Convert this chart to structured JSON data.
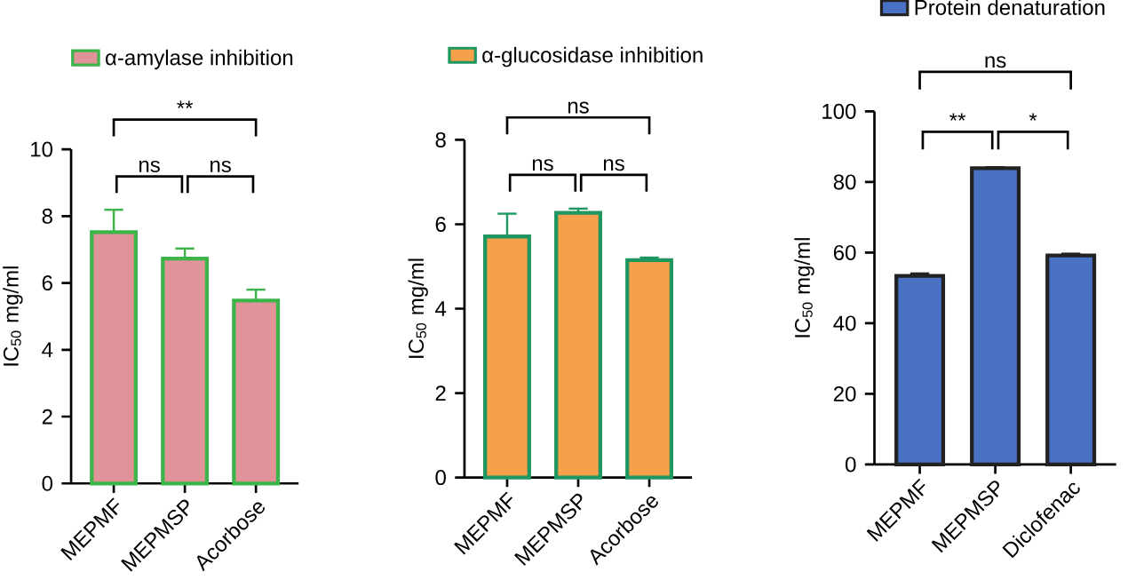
{
  "chart_data": [
    {
      "type": "bar",
      "categories": [
        "MEPMF",
        "MEPMSP",
        "Acorbose"
      ],
      "ylabel": "IC$_{50}$ mg/ml",
      "ylim": [
        0,
        10
      ],
      "yticks": [
        0,
        2,
        4,
        6,
        8,
        10
      ],
      "legend": "top",
      "annotations": [
        "ns",
        "ns",
        "**"
      ],
      "series": [
        {
          "name": "α-amylase inhibition",
          "color": "#e0949a",
          "values": [
            7.52,
            6.73,
            5.47
          ],
          "errors": [
            0.67,
            0.3,
            0.33
          ]
        }
      ]
    },
    {
      "type": "bar",
      "categories": [
        "MEPMF",
        "MEPMSP",
        "Acorbose"
      ],
      "ylabel": "IC$_{50}$ mg/ml",
      "ylim": [
        0,
        8
      ],
      "yticks": [
        0,
        2,
        4,
        6,
        8
      ],
      "legend": "top",
      "annotations": [
        "ns",
        "ns",
        "ns"
      ],
      "series": [
        {
          "name": "α-glucosidase inhibition",
          "color": "#f5a04a",
          "values": [
            5.71,
            6.27,
            5.15
          ],
          "errors": [
            0.54,
            0.1,
            0.06
          ]
        }
      ]
    },
    {
      "type": "bar",
      "categories": [
        "MEPMF",
        "MEPMSP",
        "Diclofenac"
      ],
      "ylabel": "IC$_{50}$ mg/ml",
      "ylim": [
        0,
        100
      ],
      "yticks": [
        0,
        20,
        40,
        60,
        80,
        100
      ],
      "legend": "top",
      "annotations": [
        "**",
        "*",
        "ns"
      ],
      "series": [
        {
          "name": "Protein denaturation",
          "color": "#4a72c4",
          "values": [
            53.4,
            83.9,
            59.2
          ],
          "errors": [
            0.7,
            0.3,
            0.5
          ]
        }
      ]
    }
  ]
}
